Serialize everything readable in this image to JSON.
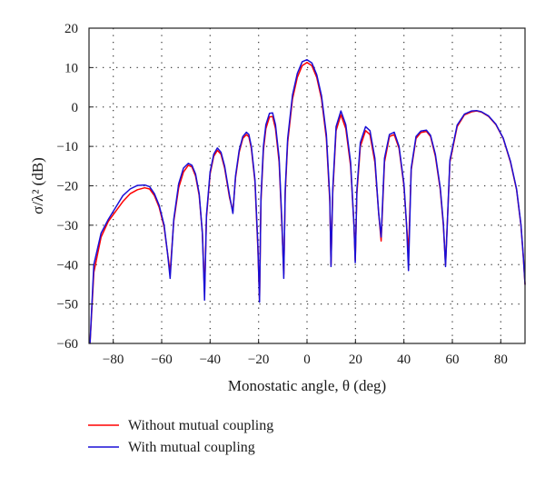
{
  "chart_data": {
    "type": "line",
    "title": "",
    "xlabel": "Monostatic angle, θ (deg)",
    "ylabel": "σ/λ² (dB)",
    "xlim": [
      -90,
      90
    ],
    "ylim": [
      -60,
      20
    ],
    "xticks": [
      -80,
      -60,
      -40,
      -20,
      0,
      20,
      40,
      60,
      80
    ],
    "yticks": [
      -60,
      -50,
      -40,
      -30,
      -20,
      -10,
      0,
      10,
      20
    ],
    "grid": true,
    "legend_position": "below-left",
    "series": [
      {
        "name": "Without mutual coupling",
        "color": "#ff0000",
        "x": [
          -89.6,
          -88,
          -85,
          -82,
          -79,
          -76,
          -73,
          -70,
          -67,
          -65,
          -63,
          -61,
          -59,
          -57.6,
          -56.5,
          -55,
          -53,
          -51,
          -49,
          -47.5,
          -46,
          -44.5,
          -43.2,
          -42.3,
          -41.5,
          -40,
          -38.5,
          -37,
          -35.5,
          -34,
          -32,
          -30.6,
          -29.5,
          -28,
          -26.5,
          -25,
          -24,
          -23,
          -21.5,
          -20.3,
          -19.6,
          -19,
          -18,
          -17,
          -15.5,
          -14.2,
          -13,
          -11.5,
          -10.3,
          -9.6,
          -9,
          -8,
          -6,
          -4,
          -2,
          0,
          2,
          4,
          6,
          8,
          9.4,
          9.9,
          10.6,
          12,
          14,
          16,
          18,
          19.4,
          19.9,
          20.6,
          22,
          24.2,
          26,
          28,
          29.6,
          30.6,
          32,
          34,
          36,
          38,
          40,
          41.1,
          41.9,
          43,
          45,
          47,
          49.3,
          51,
          53,
          55,
          56.3,
          57.2,
          59,
          62,
          65,
          68,
          70,
          72,
          75,
          78,
          81,
          84,
          86.5,
          88.3,
          89.3,
          90
        ],
        "y": [
          -60,
          -42,
          -33,
          -29,
          -26.5,
          -24,
          -22,
          -21,
          -20.5,
          -20.8,
          -22.5,
          -25.5,
          -30.5,
          -37,
          -42,
          -29,
          -20.5,
          -16.5,
          -14.8,
          -15.2,
          -17.5,
          -22.5,
          -32,
          -47,
          -28,
          -17,
          -12.5,
          -11,
          -12,
          -15.5,
          -23,
          -26.5,
          -18,
          -11.5,
          -8,
          -7,
          -7.6,
          -10.5,
          -19,
          -36,
          -49,
          -24,
          -11,
          -5.5,
          -2.5,
          -2.4,
          -5.5,
          -14,
          -31,
          -42.5,
          -22,
          -9,
          2,
          7.5,
          10.5,
          11.3,
          10.5,
          7.5,
          2,
          -8,
          -24,
          -40,
          -22,
          -6,
          -2,
          -5.5,
          -15,
          -30,
          -39,
          -22,
          -10,
          -6,
          -7,
          -14,
          -27,
          -34,
          -14,
          -7.5,
          -7,
          -10.5,
          -20,
          -30,
          -37,
          -16,
          -8,
          -6.5,
          -6.2,
          -7.5,
          -12.5,
          -21,
          -30,
          -40,
          -14,
          -5,
          -2,
          -1.2,
          -1,
          -1.3,
          -2.4,
          -4.5,
          -8,
          -14,
          -21,
          -30,
          -38,
          -45
        ]
      },
      {
        "name": "With mutual coupling",
        "color": "#1a0fd6",
        "x": [
          -89.6,
          -88,
          -85,
          -82,
          -79,
          -76,
          -73,
          -70,
          -67,
          -65,
          -63,
          -61,
          -59,
          -57.6,
          -56.5,
          -55,
          -53,
          -51,
          -49,
          -47.5,
          -46,
          -44.5,
          -43.2,
          -42.3,
          -41.5,
          -40,
          -38.5,
          -37,
          -35.5,
          -34,
          -32,
          -30.6,
          -29.5,
          -28,
          -26.5,
          -25,
          -24,
          -23,
          -21.5,
          -20.3,
          -19.6,
          -19,
          -18,
          -17,
          -15.5,
          -14.2,
          -13,
          -11.5,
          -10.3,
          -9.6,
          -9,
          -8,
          -6,
          -4,
          -2,
          0,
          2,
          4,
          6,
          8,
          9.4,
          9.9,
          10.6,
          12,
          14,
          16,
          18,
          19.4,
          19.9,
          20.6,
          22,
          24.2,
          26,
          28,
          29.6,
          30.6,
          32,
          34,
          36,
          38,
          40,
          41.1,
          41.9,
          43,
          45,
          47,
          49.3,
          51,
          53,
          55,
          56.3,
          57.2,
          59,
          62,
          65,
          68,
          70,
          72,
          75,
          78,
          81,
          84,
          86.5,
          88.3,
          89.3,
          90
        ],
        "y": [
          -60,
          -40,
          -32,
          -28.5,
          -25.5,
          -22.5,
          -20.8,
          -19.9,
          -19.8,
          -20.2,
          -22,
          -25,
          -30,
          -37,
          -43.5,
          -28.5,
          -19.5,
          -15.5,
          -14.3,
          -14.8,
          -17,
          -22,
          -32,
          -49,
          -27.5,
          -16.5,
          -12,
          -10.4,
          -11.5,
          -15,
          -22.5,
          -27,
          -17.5,
          -11,
          -7.5,
          -6.4,
          -7,
          -10,
          -18.5,
          -35,
          -49.5,
          -23,
          -10,
          -4.5,
          -1.6,
          -1.5,
          -4.5,
          -13,
          -30,
          -43.5,
          -21,
          -8,
          3,
          8.5,
          11.5,
          12,
          11.2,
          8.2,
          2.8,
          -7,
          -23,
          -40.5,
          -21,
          -5,
          -1,
          -4.5,
          -14,
          -30,
          -39.5,
          -21,
          -9,
          -5,
          -6,
          -13,
          -27,
          -33,
          -13,
          -7,
          -6.4,
          -10,
          -19.5,
          -30,
          -41.5,
          -15.5,
          -7.5,
          -6.1,
          -5.9,
          -7.2,
          -12,
          -20.5,
          -29.5,
          -40.5,
          -13.5,
          -4.6,
          -1.8,
          -1,
          -0.9,
          -1.2,
          -2.3,
          -4.4,
          -7.9,
          -13.8,
          -20.8,
          -29.8,
          -37.8,
          -45
        ]
      }
    ]
  }
}
